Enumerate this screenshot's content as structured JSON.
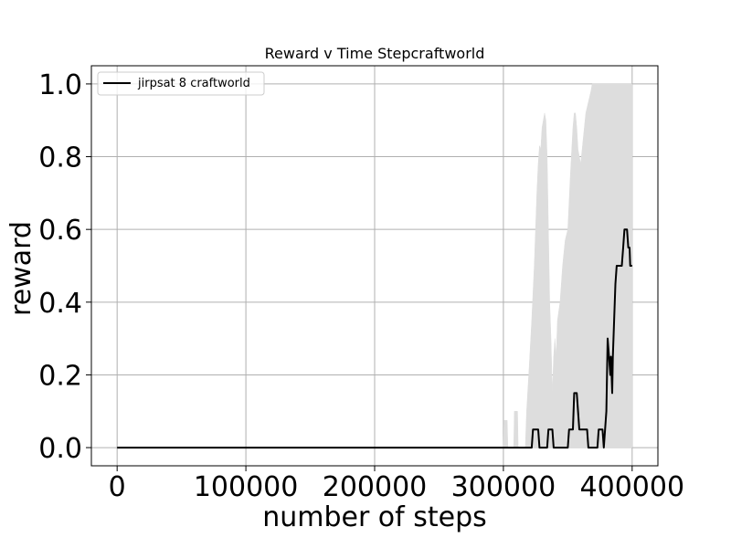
{
  "chart_data": {
    "type": "line",
    "title": "Reward v Time Stepcraftworld",
    "xlabel": "number of steps",
    "ylabel": "reward",
    "xlim": [
      -20000,
      420000
    ],
    "ylim": [
      -0.05,
      1.05
    ],
    "x_ticks": [
      0,
      100000,
      200000,
      300000,
      400000
    ],
    "x_tick_labels": [
      "0",
      "100000",
      "200000",
      "300000",
      "400000"
    ],
    "y_ticks": [
      0.0,
      0.2,
      0.4,
      0.6,
      0.8,
      1.0
    ],
    "y_tick_labels": [
      "0.0",
      "0.2",
      "0.4",
      "0.6",
      "0.8",
      "1.0"
    ],
    "grid": true,
    "legend_position": "top-left",
    "series": [
      {
        "name": "jirpsat 8 craftworld",
        "color": "#000000",
        "points": [
          [
            0,
            0.0
          ],
          [
            322000,
            0.0
          ],
          [
            323000,
            0.05
          ],
          [
            327000,
            0.05
          ],
          [
            328000,
            0.0
          ],
          [
            334000,
            0.0
          ],
          [
            335000,
            0.05
          ],
          [
            338000,
            0.05
          ],
          [
            339000,
            0.0
          ],
          [
            350000,
            0.0
          ],
          [
            351000,
            0.05
          ],
          [
            354000,
            0.05
          ],
          [
            355000,
            0.15
          ],
          [
            357000,
            0.15
          ],
          [
            359000,
            0.05
          ],
          [
            365000,
            0.05
          ],
          [
            366000,
            0.0
          ],
          [
            373000,
            0.0
          ],
          [
            374000,
            0.05
          ],
          [
            377000,
            0.05
          ],
          [
            378000,
            0.0
          ],
          [
            379000,
            0.05
          ],
          [
            380000,
            0.1
          ],
          [
            381000,
            0.3
          ],
          [
            382000,
            0.25
          ],
          [
            383000,
            0.2
          ],
          [
            383500,
            0.25
          ],
          [
            384000,
            0.2
          ],
          [
            384500,
            0.15
          ],
          [
            385000,
            0.25
          ],
          [
            386000,
            0.35
          ],
          [
            387000,
            0.45
          ],
          [
            388000,
            0.5
          ],
          [
            392000,
            0.5
          ],
          [
            393000,
            0.55
          ],
          [
            394000,
            0.6
          ],
          [
            396000,
            0.6
          ],
          [
            397000,
            0.55
          ],
          [
            398000,
            0.55
          ],
          [
            398500,
            0.5
          ],
          [
            400000,
            0.5
          ]
        ]
      }
    ],
    "band": {
      "color": "#dddddd",
      "upper": [
        [
          0,
          0.0
        ],
        [
          300000,
          0.0
        ],
        [
          300500,
          0.075
        ],
        [
          303000,
          0.075
        ],
        [
          303500,
          0.0
        ],
        [
          308000,
          0.0
        ],
        [
          308500,
          0.1
        ],
        [
          311000,
          0.1
        ],
        [
          311500,
          0.0
        ],
        [
          317000,
          0.0
        ],
        [
          318000,
          0.1
        ],
        [
          320000,
          0.22
        ],
        [
          322000,
          0.35
        ],
        [
          324000,
          0.5
        ],
        [
          326000,
          0.7
        ],
        [
          327000,
          0.78
        ],
        [
          328000,
          0.83
        ],
        [
          329000,
          0.82
        ],
        [
          330000,
          0.88
        ],
        [
          331000,
          0.9
        ],
        [
          332000,
          0.92
        ],
        [
          333000,
          0.9
        ],
        [
          334000,
          0.8
        ],
        [
          335000,
          0.6
        ],
        [
          336000,
          0.4
        ],
        [
          337000,
          0.3
        ],
        [
          338000,
          0.15
        ],
        [
          339000,
          0.25
        ],
        [
          340000,
          0.3
        ],
        [
          341000,
          0.25
        ],
        [
          342000,
          0.35
        ],
        [
          344000,
          0.4
        ],
        [
          346000,
          0.5
        ],
        [
          348000,
          0.57
        ],
        [
          350000,
          0.6
        ],
        [
          352000,
          0.75
        ],
        [
          354000,
          0.88
        ],
        [
          355000,
          0.92
        ],
        [
          356000,
          0.92
        ],
        [
          357000,
          0.88
        ],
        [
          358000,
          0.82
        ],
        [
          360000,
          0.78
        ],
        [
          362000,
          0.85
        ],
        [
          364000,
          0.92
        ],
        [
          366000,
          0.95
        ],
        [
          368000,
          0.98
        ],
        [
          369000,
          1.0
        ],
        [
          400000,
          1.0
        ]
      ],
      "lower": [
        [
          0,
          0.0
        ],
        [
          400000,
          0.0
        ]
      ]
    }
  }
}
